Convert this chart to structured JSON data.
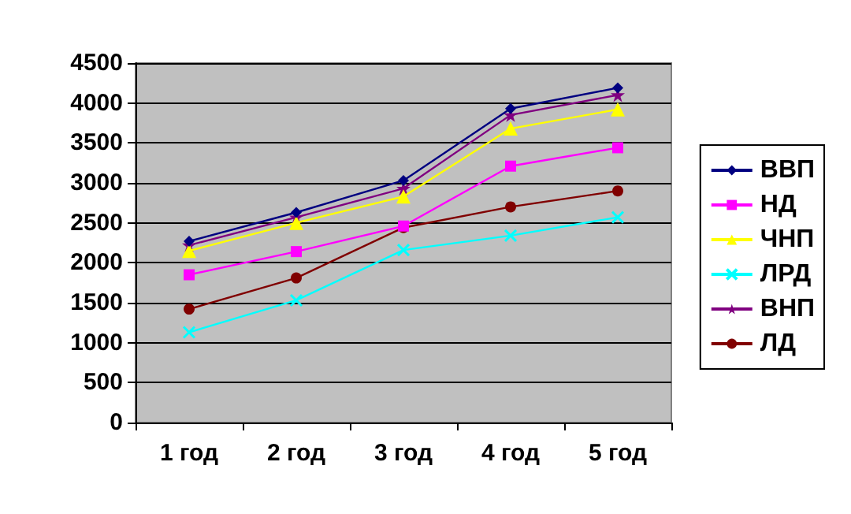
{
  "chart_data": {
    "type": "line",
    "categories": [
      "1 год",
      "2 год",
      "3 год",
      "4 год",
      "5 год"
    ],
    "series": [
      {
        "name": "ВВП",
        "color": "#000080",
        "marker": "diamond",
        "values": [
          2270,
          2630,
          3030,
          3930,
          4190
        ]
      },
      {
        "name": "НД",
        "color": "#ff00ff",
        "marker": "square",
        "values": [
          1850,
          2140,
          2460,
          3210,
          3440
        ]
      },
      {
        "name": "ЧНП",
        "color": "#ffff00",
        "marker": "triangle",
        "values": [
          2150,
          2500,
          2830,
          3680,
          3920
        ]
      },
      {
        "name": "ЛРД",
        "color": "#00ffff",
        "marker": "cross",
        "values": [
          1130,
          1530,
          2160,
          2340,
          2570
        ]
      },
      {
        "name": "ВНП",
        "color": "#800080",
        "marker": "star",
        "values": [
          2220,
          2570,
          2930,
          3850,
          4100
        ]
      },
      {
        "name": "ЛД",
        "color": "#800000",
        "marker": "circle",
        "values": [
          1420,
          1810,
          2440,
          2700,
          2900
        ]
      }
    ],
    "ylim": [
      0,
      4500
    ],
    "yticks": [
      0,
      500,
      1000,
      1500,
      2000,
      2500,
      3000,
      3500,
      4000,
      4500
    ],
    "grid": "y",
    "legend": "right"
  }
}
